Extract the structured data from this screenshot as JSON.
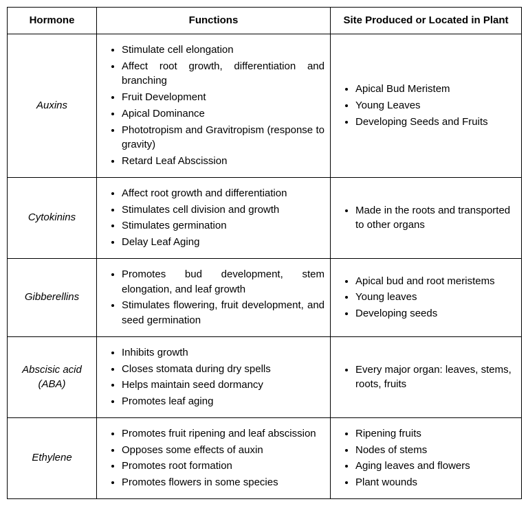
{
  "headers": {
    "hormone": "Hormone",
    "functions": "Functions",
    "site": "Site Produced or Located in Plant"
  },
  "rows": [
    {
      "hormone": "Auxins",
      "functions": [
        "Stimulate cell elongation",
        "Affect root growth, differentiation and branching",
        "Fruit Development",
        "Apical Dominance",
        "Phototropism and Gravitropism (response to gravity)",
        "Retard Leaf Abscission"
      ],
      "sites": [
        "Apical Bud Meristem",
        "Young Leaves",
        "Developing Seeds and Fruits"
      ]
    },
    {
      "hormone": "Cytokinins",
      "functions": [
        "Affect root growth and differentiation",
        "Stimulates cell division and growth",
        "Stimulates germination",
        "Delay Leaf Aging"
      ],
      "sites": [
        "Made in the roots and transported to other organs"
      ]
    },
    {
      "hormone": "Gibberellins",
      "functions": [
        "Promotes bud development, stem elongation, and leaf growth",
        "Stimulates flowering, fruit development, and seed germination"
      ],
      "sites": [
        "Apical bud and root meristems",
        "Young leaves",
        "Developing seeds"
      ]
    },
    {
      "hormone": "Abscisic acid (ABA)",
      "functions": [
        "Inhibits growth",
        "Closes stomata during dry spells",
        "Helps maintain seed dormancy",
        "Promotes leaf aging"
      ],
      "sites": [
        "Every major organ: leaves, stems, roots, fruits"
      ]
    },
    {
      "hormone": "Ethylene",
      "functions": [
        "Promotes fruit ripening and leaf abscission",
        "Opposes some effects of auxin",
        "Promotes root formation",
        "Promotes flowers in some species"
      ],
      "sites": [
        "Ripening fruits",
        "Nodes of stems",
        "Aging leaves and flowers",
        "Plant wounds"
      ]
    }
  ]
}
